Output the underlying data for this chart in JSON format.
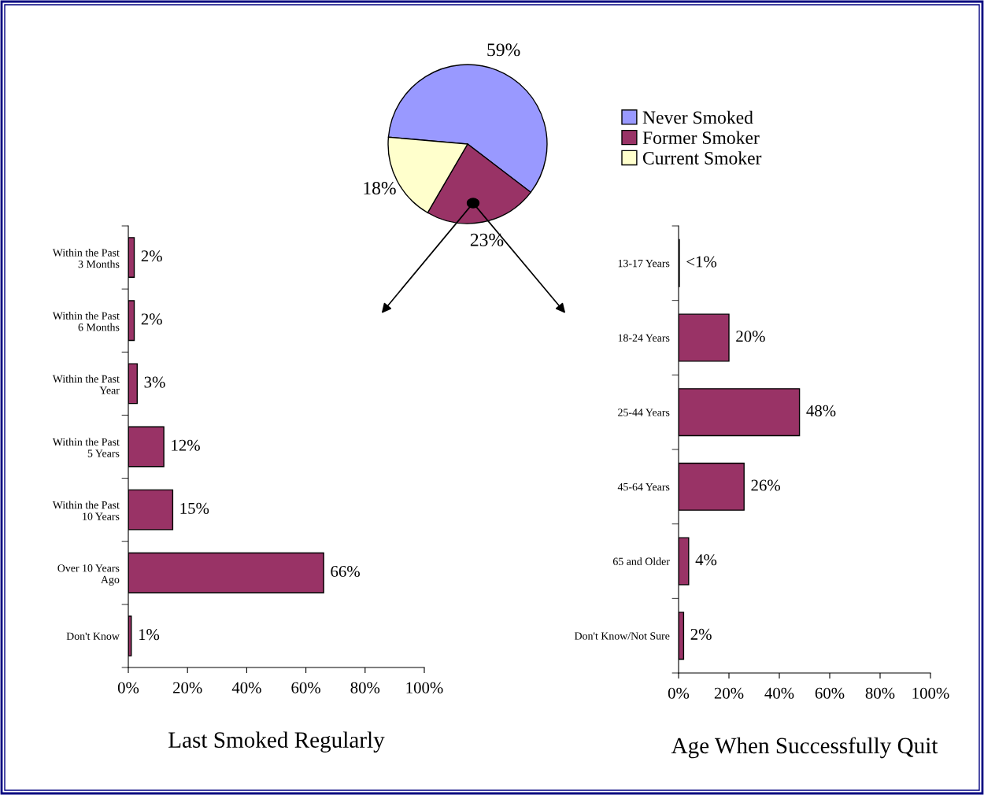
{
  "chart_data": [
    {
      "type": "pie",
      "categories": [
        "Never Smoked",
        "Former Smoker",
        "Current Smoker"
      ],
      "values": [
        59,
        23,
        18
      ],
      "colors": [
        "#9999ff",
        "#993366",
        "#ffffcc"
      ],
      "value_labels": [
        "59%",
        "23%",
        "18%"
      ],
      "legend": "right"
    },
    {
      "type": "bar",
      "orientation": "horizontal",
      "xlabel": "Last Smoked Regularly",
      "categories": [
        "Within the Past\n3 Months",
        "Within the Past\n6 Months",
        "Within the Past\nYear",
        "Within the Past\n5 Years",
        "Within the Past\n10 Years",
        "Over 10 Years\nAgo",
        "Don't Know"
      ],
      "values": [
        2,
        2,
        3,
        12,
        15,
        66,
        1
      ],
      "value_labels": [
        "2%",
        "2%",
        "3%",
        "12%",
        "15%",
        "66%",
        "1%"
      ],
      "color": "#993366",
      "xlim": [
        0,
        100
      ],
      "xticks": [
        {
          "value": 0,
          "label": "0%"
        },
        {
          "value": 20,
          "label": "20%"
        },
        {
          "value": 40,
          "label": "40%"
        },
        {
          "value": 60,
          "label": "60%"
        },
        {
          "value": 80,
          "label": "80%"
        },
        {
          "value": 100,
          "label": "100%"
        }
      ],
      "grid": false,
      "legend": false
    },
    {
      "type": "bar",
      "orientation": "horizontal",
      "xlabel": "Age When Successfully Quit",
      "categories": [
        "13-17 Years",
        "18-24 Years",
        "25-44 Years",
        "45-64 Years",
        "65 and Older",
        "Don't Know/Not Sure"
      ],
      "values": [
        0.3,
        20,
        48,
        26,
        4,
        2
      ],
      "value_labels": [
        "<1%",
        "20%",
        "48%",
        "26%",
        "4%",
        "2%"
      ],
      "color": "#993366",
      "xlim": [
        0,
        100
      ],
      "xticks": [
        {
          "value": 0,
          "label": "0%"
        },
        {
          "value": 20,
          "label": "20%"
        },
        {
          "value": 40,
          "label": "40%"
        },
        {
          "value": 60,
          "label": "60%"
        },
        {
          "value": 80,
          "label": "80%"
        },
        {
          "value": 100,
          "label": "100%"
        }
      ],
      "grid": false,
      "legend": false
    }
  ]
}
